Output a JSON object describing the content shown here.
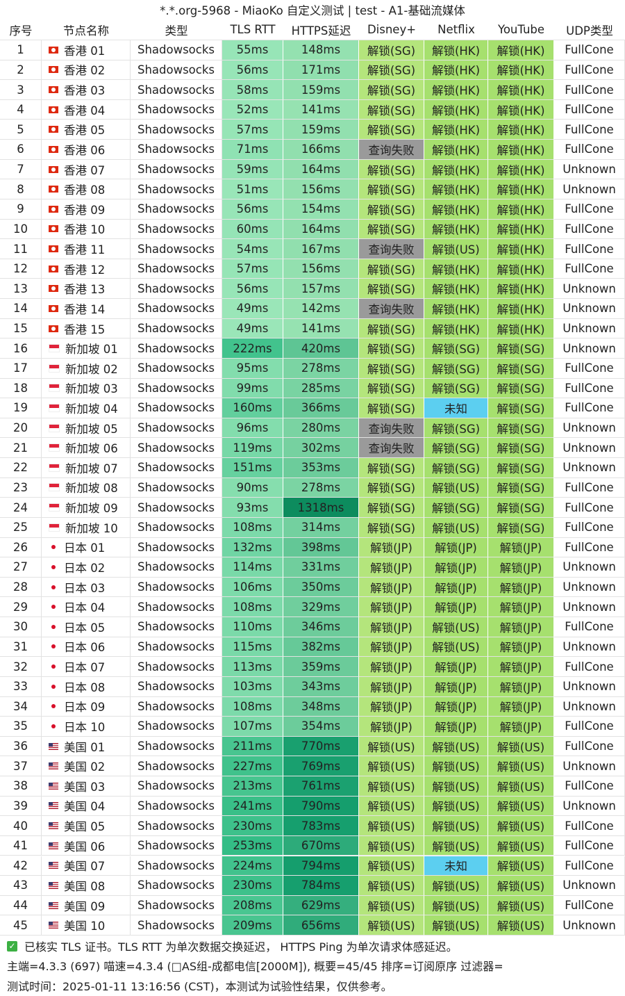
{
  "title": "*.*.org-5968 - MiaoKo 自定义测试 | test - A1-基础流媒体",
  "table": {
    "header": [
      "序号",
      "节点名称",
      "类型",
      "TLS RTT",
      "HTTPS延迟",
      "Disney+",
      "Netflix",
      "YouTube",
      "UDP类型"
    ],
    "rows": [
      [
        "1",
        "香港 01",
        "Shadowsocks",
        "55ms",
        "148ms",
        "解锁(SG)",
        "解锁(HK)",
        "解锁(HK)",
        "FullCone"
      ],
      [
        "2",
        "香港 02",
        "Shadowsocks",
        "56ms",
        "171ms",
        "解锁(SG)",
        "解锁(HK)",
        "解锁(HK)",
        "FullCone"
      ],
      [
        "3",
        "香港 03",
        "Shadowsocks",
        "58ms",
        "159ms",
        "解锁(SG)",
        "解锁(HK)",
        "解锁(HK)",
        "FullCone"
      ],
      [
        "4",
        "香港 04",
        "Shadowsocks",
        "52ms",
        "141ms",
        "解锁(SG)",
        "解锁(HK)",
        "解锁(HK)",
        "FullCone"
      ],
      [
        "5",
        "香港 05",
        "Shadowsocks",
        "57ms",
        "159ms",
        "解锁(SG)",
        "解锁(HK)",
        "解锁(HK)",
        "FullCone"
      ],
      [
        "6",
        "香港 06",
        "Shadowsocks",
        "71ms",
        "166ms",
        "查询失败",
        "解锁(HK)",
        "解锁(HK)",
        "FullCone"
      ],
      [
        "7",
        "香港 07",
        "Shadowsocks",
        "59ms",
        "164ms",
        "解锁(SG)",
        "解锁(HK)",
        "解锁(HK)",
        "Unknown"
      ],
      [
        "8",
        "香港 08",
        "Shadowsocks",
        "51ms",
        "156ms",
        "解锁(SG)",
        "解锁(HK)",
        "解锁(HK)",
        "Unknown"
      ],
      [
        "9",
        "香港 09",
        "Shadowsocks",
        "56ms",
        "154ms",
        "解锁(SG)",
        "解锁(HK)",
        "解锁(HK)",
        "FullCone"
      ],
      [
        "10",
        "香港 10",
        "Shadowsocks",
        "60ms",
        "164ms",
        "解锁(SG)",
        "解锁(HK)",
        "解锁(HK)",
        "FullCone"
      ],
      [
        "11",
        "香港 11",
        "Shadowsocks",
        "54ms",
        "167ms",
        "查询失败",
        "解锁(US)",
        "解锁(HK)",
        "FullCone"
      ],
      [
        "12",
        "香港 12",
        "Shadowsocks",
        "57ms",
        "156ms",
        "解锁(SG)",
        "解锁(HK)",
        "解锁(HK)",
        "FullCone"
      ],
      [
        "13",
        "香港 13",
        "Shadowsocks",
        "56ms",
        "157ms",
        "解锁(SG)",
        "解锁(HK)",
        "解锁(HK)",
        "Unknown"
      ],
      [
        "14",
        "香港 14",
        "Shadowsocks",
        "49ms",
        "142ms",
        "查询失败",
        "解锁(HK)",
        "解锁(HK)",
        "Unknown"
      ],
      [
        "15",
        "香港 15",
        "Shadowsocks",
        "49ms",
        "141ms",
        "解锁(SG)",
        "解锁(HK)",
        "解锁(HK)",
        "Unknown"
      ],
      [
        "16",
        "新加坡 01",
        "Shadowsocks",
        "222ms",
        "420ms",
        "解锁(SG)",
        "解锁(SG)",
        "解锁(SG)",
        "Unknown"
      ],
      [
        "17",
        "新加坡 02",
        "Shadowsocks",
        "95ms",
        "278ms",
        "解锁(SG)",
        "解锁(SG)",
        "解锁(SG)",
        "FullCone"
      ],
      [
        "18",
        "新加坡 03",
        "Shadowsocks",
        "99ms",
        "285ms",
        "解锁(SG)",
        "解锁(SG)",
        "解锁(SG)",
        "FullCone"
      ],
      [
        "19",
        "新加坡 04",
        "Shadowsocks",
        "160ms",
        "366ms",
        "解锁(SG)",
        "未知",
        "解锁(SG)",
        "FullCone"
      ],
      [
        "20",
        "新加坡 05",
        "Shadowsocks",
        "96ms",
        "280ms",
        "查询失败",
        "解锁(SG)",
        "解锁(SG)",
        "Unknown"
      ],
      [
        "21",
        "新加坡 06",
        "Shadowsocks",
        "119ms",
        "302ms",
        "查询失败",
        "解锁(SG)",
        "解锁(SG)",
        "Unknown"
      ],
      [
        "22",
        "新加坡 07",
        "Shadowsocks",
        "151ms",
        "353ms",
        "解锁(SG)",
        "解锁(SG)",
        "解锁(SG)",
        "Unknown"
      ],
      [
        "23",
        "新加坡 08",
        "Shadowsocks",
        "90ms",
        "278ms",
        "解锁(SG)",
        "解锁(US)",
        "解锁(SG)",
        "FullCone"
      ],
      [
        "24",
        "新加坡 09",
        "Shadowsocks",
        "93ms",
        "1318ms",
        "解锁(SG)",
        "解锁(SG)",
        "解锁(SG)",
        "FullCone"
      ],
      [
        "25",
        "新加坡 10",
        "Shadowsocks",
        "108ms",
        "314ms",
        "解锁(SG)",
        "解锁(US)",
        "解锁(SG)",
        "FullCone"
      ],
      [
        "26",
        "日本 01",
        "Shadowsocks",
        "132ms",
        "398ms",
        "解锁(JP)",
        "解锁(JP)",
        "解锁(JP)",
        "FullCone"
      ],
      [
        "27",
        "日本 02",
        "Shadowsocks",
        "114ms",
        "331ms",
        "解锁(JP)",
        "解锁(JP)",
        "解锁(JP)",
        "Unknown"
      ],
      [
        "28",
        "日本 03",
        "Shadowsocks",
        "106ms",
        "350ms",
        "解锁(JP)",
        "解锁(JP)",
        "解锁(JP)",
        "Unknown"
      ],
      [
        "29",
        "日本 04",
        "Shadowsocks",
        "108ms",
        "329ms",
        "解锁(JP)",
        "解锁(JP)",
        "解锁(JP)",
        "Unknown"
      ],
      [
        "30",
        "日本 05",
        "Shadowsocks",
        "110ms",
        "346ms",
        "解锁(JP)",
        "解锁(US)",
        "解锁(JP)",
        "FullCone"
      ],
      [
        "31",
        "日本 06",
        "Shadowsocks",
        "115ms",
        "382ms",
        "解锁(JP)",
        "解锁(US)",
        "解锁(JP)",
        "Unknown"
      ],
      [
        "32",
        "日本 07",
        "Shadowsocks",
        "113ms",
        "359ms",
        "解锁(JP)",
        "解锁(JP)",
        "解锁(JP)",
        "FullCone"
      ],
      [
        "33",
        "日本 08",
        "Shadowsocks",
        "103ms",
        "343ms",
        "解锁(JP)",
        "解锁(JP)",
        "解锁(JP)",
        "Unknown"
      ],
      [
        "34",
        "日本 09",
        "Shadowsocks",
        "108ms",
        "348ms",
        "解锁(JP)",
        "解锁(JP)",
        "解锁(JP)",
        "Unknown"
      ],
      [
        "35",
        "日本 10",
        "Shadowsocks",
        "107ms",
        "354ms",
        "解锁(JP)",
        "解锁(JP)",
        "解锁(JP)",
        "FullCone"
      ],
      [
        "36",
        "美国 01",
        "Shadowsocks",
        "211ms",
        "770ms",
        "解锁(US)",
        "解锁(US)",
        "解锁(US)",
        "FullCone"
      ],
      [
        "37",
        "美国 02",
        "Shadowsocks",
        "227ms",
        "769ms",
        "解锁(US)",
        "解锁(US)",
        "解锁(US)",
        "Unknown"
      ],
      [
        "38",
        "美国 03",
        "Shadowsocks",
        "213ms",
        "761ms",
        "解锁(US)",
        "解锁(US)",
        "解锁(US)",
        "FullCone"
      ],
      [
        "39",
        "美国 04",
        "Shadowsocks",
        "241ms",
        "790ms",
        "解锁(US)",
        "解锁(US)",
        "解锁(US)",
        "Unknown"
      ],
      [
        "40",
        "美国 05",
        "Shadowsocks",
        "230ms",
        "783ms",
        "解锁(US)",
        "解锁(US)",
        "解锁(US)",
        "FullCone"
      ],
      [
        "41",
        "美国 06",
        "Shadowsocks",
        "253ms",
        "670ms",
        "解锁(US)",
        "解锁(US)",
        "解锁(US)",
        "FullCone"
      ],
      [
        "42",
        "美国 07",
        "Shadowsocks",
        "224ms",
        "794ms",
        "解锁(US)",
        "未知",
        "解锁(US)",
        "FullCone"
      ],
      [
        "43",
        "美国 08",
        "Shadowsocks",
        "230ms",
        "784ms",
        "解锁(US)",
        "解锁(US)",
        "解锁(US)",
        "Unknown"
      ],
      [
        "44",
        "美国 09",
        "Shadowsocks",
        "208ms",
        "629ms",
        "解锁(US)",
        "解锁(US)",
        "解锁(US)",
        "FullCone"
      ],
      [
        "45",
        "美国 10",
        "Shadowsocks",
        "209ms",
        "656ms",
        "解锁(US)",
        "解锁(US)",
        "解锁(US)",
        "Unknown"
      ]
    ]
  },
  "footer": [
    "已核实 TLS 证书。TLS RTT 为单次数据交换延迟， HTTPS Ping 为单次请求体感延迟。",
    "主端=4.3.3 (697) 喵速=4.3.4 (□AS组-成都电信[2000M]), 概要=45/45 排序=订阅原序 过滤器=",
    "测试时间：2025-01-11 13:16:56 (CST)，本测试为试验性结果，仅供参考。"
  ]
}
